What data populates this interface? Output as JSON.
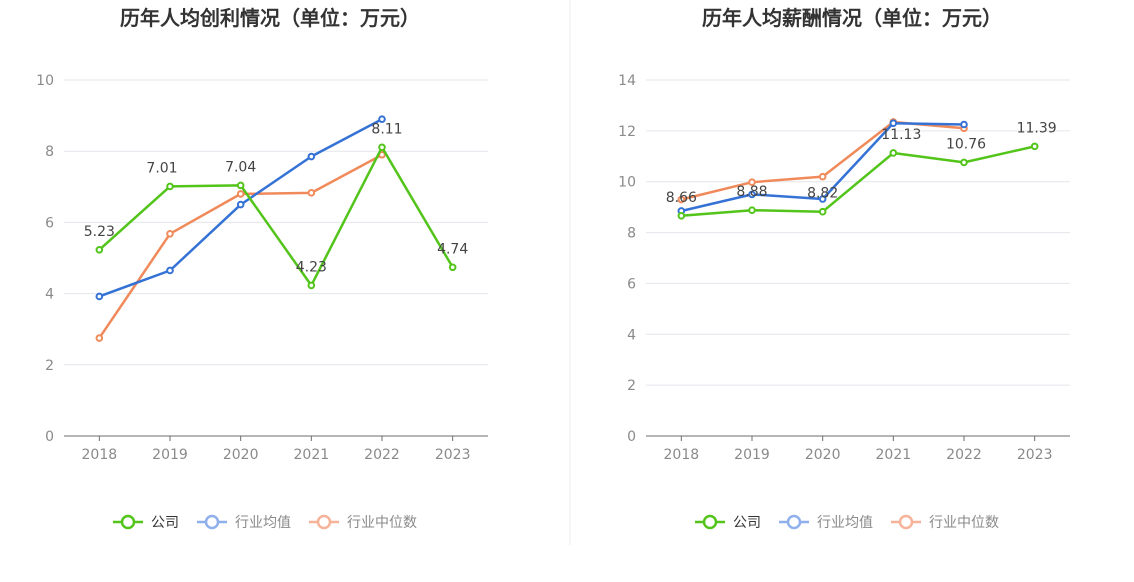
{
  "colors": {
    "company": "#52c41a",
    "industry_avg": "#3572d6",
    "industry_median": "#f08a5a",
    "legend_company": "#52c41a",
    "legend_avg": "#8fb0ec",
    "legend_median": "#f7b29a",
    "grid": "#e3e6ec",
    "axis": "#6e6e6e"
  },
  "legend": [
    "公司",
    "行业均值",
    "行业中位数"
  ],
  "chart_data": [
    {
      "type": "line",
      "title": "历年人均创利情况（单位：万元）",
      "categories": [
        "2018",
        "2019",
        "2020",
        "2021",
        "2022",
        "2023"
      ],
      "ylim": [
        0,
        10
      ],
      "yticks": [
        0,
        2,
        4,
        6,
        8,
        10
      ],
      "grid": true,
      "legend_position": "bottom",
      "series": [
        {
          "name": "公司",
          "values": [
            5.23,
            7.01,
            7.04,
            4.23,
            8.11,
            4.74
          ],
          "labels": [
            "5.23",
            "7.01",
            "7.04",
            "4.23",
            "8.11",
            "4.74"
          ]
        },
        {
          "name": "行业均值",
          "values": [
            3.92,
            4.65,
            6.5,
            7.85,
            8.9,
            null
          ]
        },
        {
          "name": "行业中位数",
          "values": [
            2.75,
            5.68,
            6.8,
            6.83,
            7.9,
            null
          ]
        }
      ]
    },
    {
      "type": "line",
      "title": "历年人均薪酬情况（单位：万元）",
      "categories": [
        "2018",
        "2019",
        "2020",
        "2021",
        "2022",
        "2023"
      ],
      "ylim": [
        0,
        14
      ],
      "yticks": [
        0,
        2,
        4,
        6,
        8,
        10,
        12,
        14
      ],
      "grid": true,
      "legend_position": "bottom",
      "series": [
        {
          "name": "公司",
          "values": [
            8.66,
            8.88,
            8.82,
            11.13,
            10.76,
            11.39
          ],
          "labels": [
            "8.66",
            "8.88",
            "8.82",
            "11.13",
            "10.76",
            "11.39"
          ]
        },
        {
          "name": "行业均值",
          "values": [
            8.85,
            9.5,
            9.32,
            12.3,
            12.25,
            null
          ]
        },
        {
          "name": "行业中位数",
          "values": [
            9.3,
            9.98,
            10.2,
            12.35,
            12.1,
            null
          ]
        }
      ]
    }
  ]
}
